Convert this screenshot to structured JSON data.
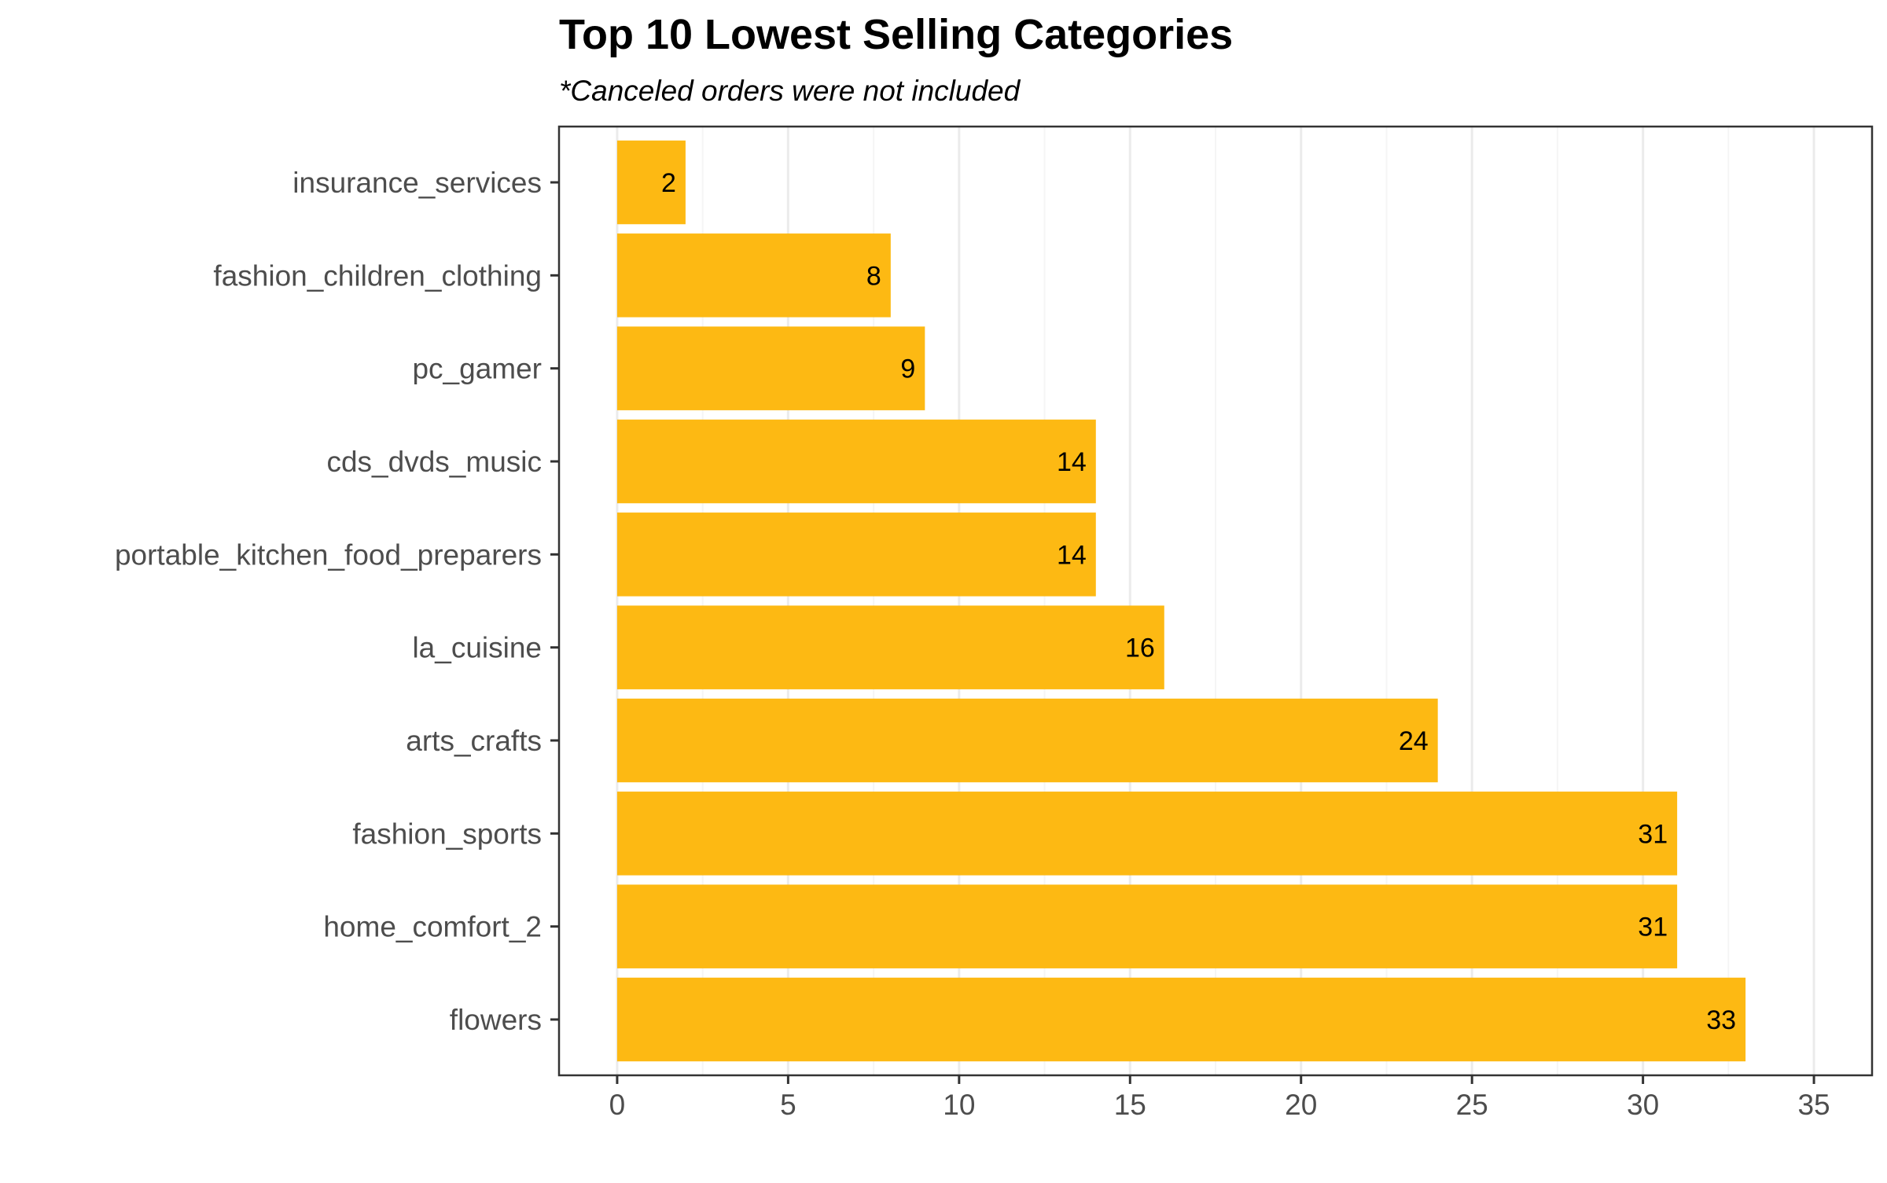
{
  "chart_data": {
    "type": "bar",
    "orientation": "horizontal",
    "title": "Top 10 Lowest Selling Categories",
    "subtitle": "*Canceled orders were not included",
    "xlabel": "",
    "ylabel": "",
    "categories": [
      "insurance_services",
      "fashion_children_clothing",
      "pc_gamer",
      "cds_dvds_music",
      "portable_kitchen_food_preparers",
      "la_cuisine",
      "arts_crafts",
      "fashion_sports",
      "home_comfort_2",
      "flowers"
    ],
    "values": [
      2,
      8,
      9,
      14,
      14,
      16,
      24,
      31,
      31,
      33
    ],
    "xlim": [
      -1.7,
      36.7
    ],
    "x_ticks": [
      0,
      5,
      10,
      15,
      20,
      25,
      30,
      35
    ],
    "grid": true,
    "legend": "none",
    "colors": {
      "bar": "#FDB913",
      "grid_major": "#ebebeb",
      "grid_minor": "#f5f5f5",
      "panel_border": "#333333",
      "tick_text": "#4d4d4d",
      "data_label": "#000000"
    }
  }
}
